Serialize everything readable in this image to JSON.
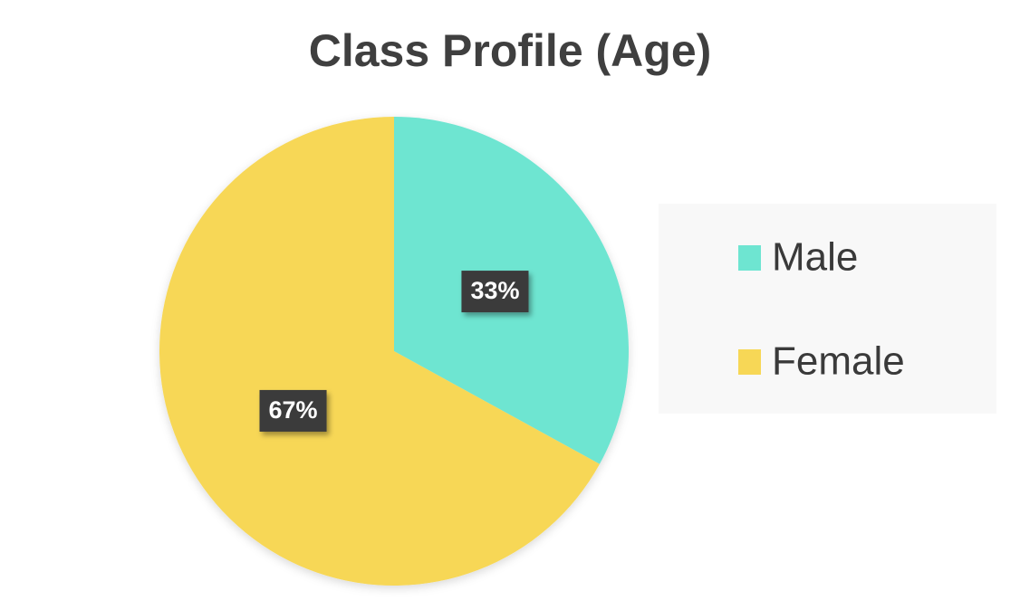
{
  "chart_data": {
    "type": "pie",
    "title": "Class Profile (Age)",
    "categories": [
      "Male",
      "Female"
    ],
    "values": [
      33,
      67
    ],
    "value_labels": [
      "33%",
      "67%"
    ],
    "colors": [
      "#6ee5d1",
      "#f7d756"
    ],
    "legend": "right"
  }
}
